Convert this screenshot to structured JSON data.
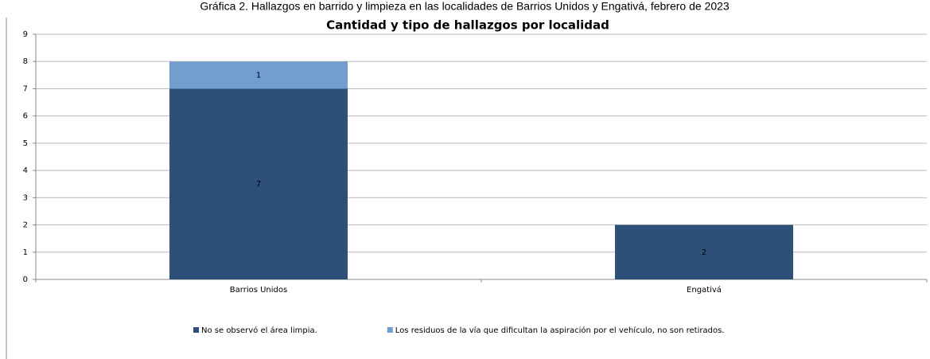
{
  "caption": "Gráfica 2. Hallazgos en barrido y limpieza en las localidades de Barrios Unidos y Engativá, febrero de 2023",
  "chart_data": {
    "type": "stacked_bar",
    "title": "Cantidad y tipo de hallazgos por localidad",
    "categories": [
      "Barrios Unidos",
      "Engativá"
    ],
    "series": [
      {
        "name": "No se observó el área limpia.",
        "color": "#2e4f7a",
        "values": [
          7,
          2
        ]
      },
      {
        "name": "Los residuos de la vía que dificultan la aspiración por el vehículo, no son retirados.",
        "color": "#729dcf",
        "values": [
          1,
          null
        ]
      }
    ],
    "ylim": [
      0,
      9
    ],
    "yticks": [
      0,
      1,
      2,
      3,
      4,
      5,
      6,
      7,
      8,
      9
    ],
    "grid": true,
    "legend": "bottom"
  }
}
